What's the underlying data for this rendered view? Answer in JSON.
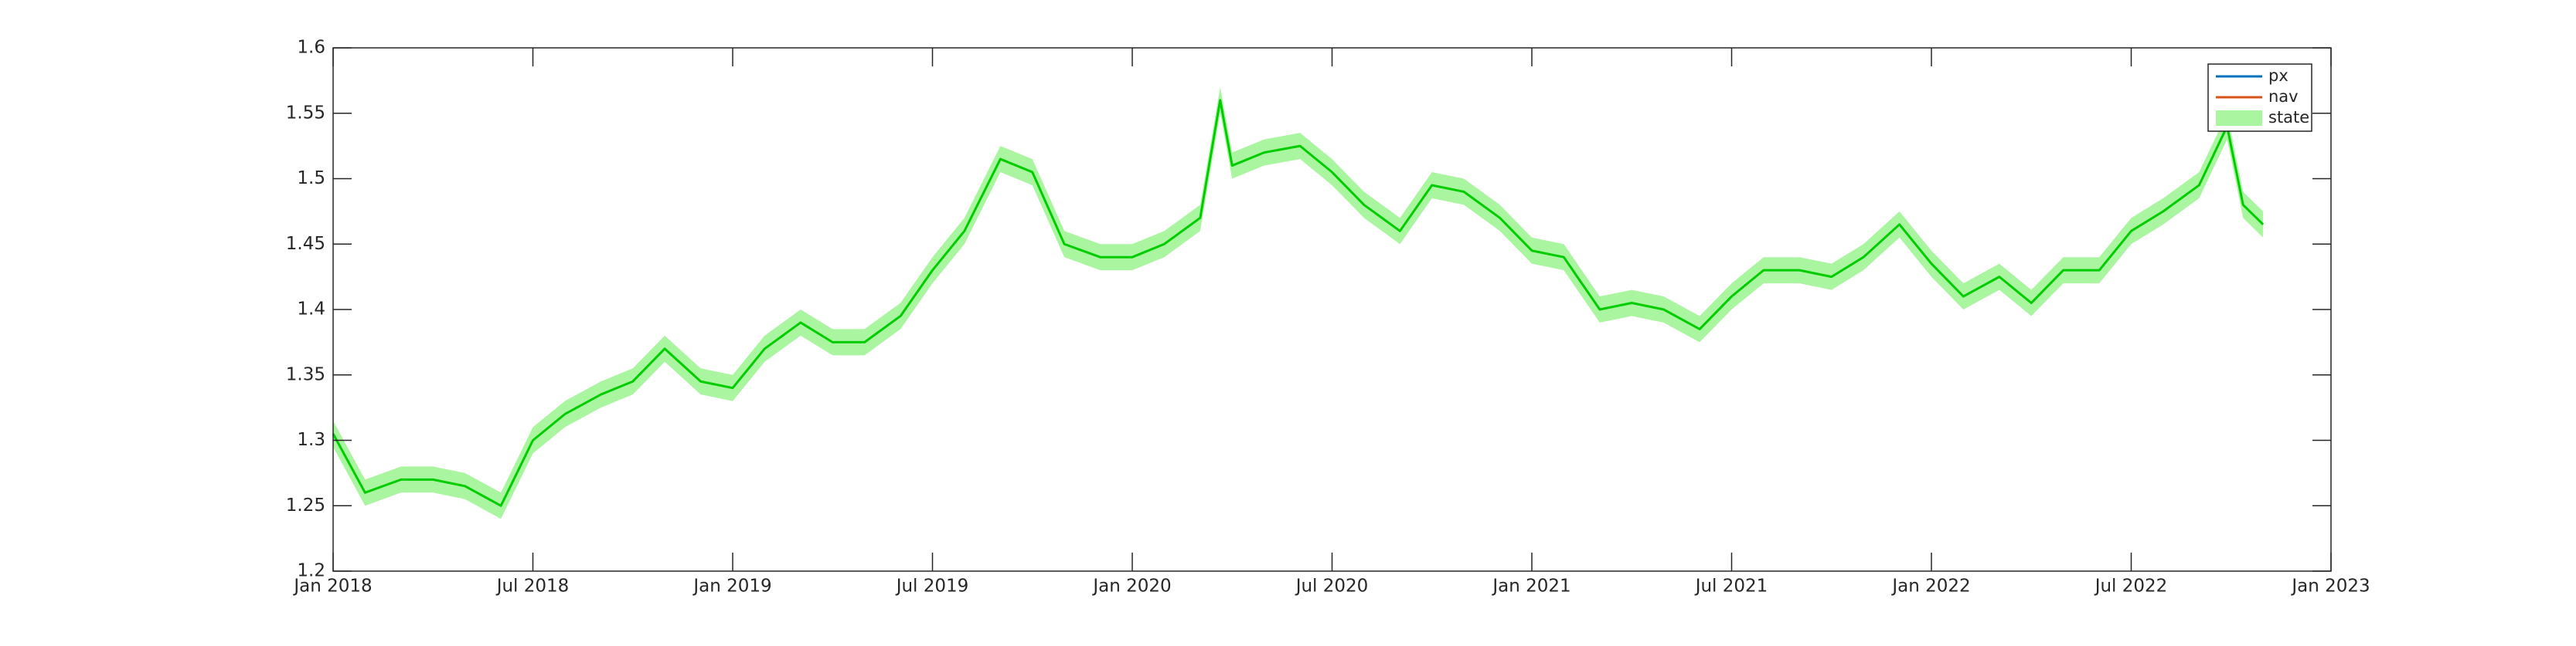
{
  "chart_data": {
    "type": "line",
    "legend": [
      {
        "name": "px",
        "color": "#0072bd",
        "kind": "line"
      },
      {
        "name": "nav",
        "color": "#d95319",
        "kind": "line"
      },
      {
        "name": "state",
        "color": "#aaf5a0",
        "kind": "patch"
      }
    ],
    "legend_position": "upper right",
    "x": [
      2018.0,
      2018.08,
      2018.17,
      2018.25,
      2018.33,
      2018.42,
      2018.5,
      2018.58,
      2018.67,
      2018.75,
      2018.83,
      2018.92,
      2019.0,
      2019.08,
      2019.17,
      2019.25,
      2019.33,
      2019.42,
      2019.5,
      2019.58,
      2019.67,
      2019.75,
      2019.83,
      2019.92,
      2020.0,
      2020.08,
      2020.17,
      2020.22,
      2020.25,
      2020.33,
      2020.42,
      2020.5,
      2020.58,
      2020.67,
      2020.75,
      2020.83,
      2020.92,
      2021.0,
      2021.08,
      2021.17,
      2021.25,
      2021.33,
      2021.42,
      2021.5,
      2021.58,
      2021.67,
      2021.75,
      2021.83,
      2021.92,
      2022.0,
      2022.08,
      2022.17,
      2022.25,
      2022.33,
      2022.42,
      2022.5,
      2022.58,
      2022.67,
      2022.74,
      2022.78,
      2022.83
    ],
    "series": [
      {
        "name": "state",
        "color": "#00cc00",
        "band_color": "#aaf5a0",
        "spread": 0.01,
        "values": [
          1.305,
          1.26,
          1.27,
          1.27,
          1.265,
          1.25,
          1.3,
          1.32,
          1.335,
          1.345,
          1.37,
          1.345,
          1.34,
          1.37,
          1.39,
          1.375,
          1.375,
          1.395,
          1.43,
          1.46,
          1.515,
          1.505,
          1.45,
          1.44,
          1.44,
          1.45,
          1.47,
          1.56,
          1.51,
          1.52,
          1.525,
          1.505,
          1.48,
          1.46,
          1.495,
          1.49,
          1.47,
          1.445,
          1.44,
          1.4,
          1.405,
          1.4,
          1.385,
          1.41,
          1.43,
          1.43,
          1.425,
          1.44,
          1.465,
          1.435,
          1.41,
          1.425,
          1.405,
          1.43,
          1.43,
          1.46,
          1.475,
          1.495,
          1.54,
          1.48,
          1.465
        ]
      }
    ],
    "xlim": [
      2018,
      2023
    ],
    "xticks": [
      {
        "value": 2018,
        "label": "Jan 2018"
      },
      {
        "value": 2018.5,
        "label": "Jul 2018"
      },
      {
        "value": 2019,
        "label": "Jan 2019"
      },
      {
        "value": 2019.5,
        "label": "Jul 2019"
      },
      {
        "value": 2020,
        "label": "Jan 2020"
      },
      {
        "value": 2020.5,
        "label": "Jul 2020"
      },
      {
        "value": 2021,
        "label": "Jan 2021"
      },
      {
        "value": 2021.5,
        "label": "Jul 2021"
      },
      {
        "value": 2022,
        "label": "Jan 2022"
      },
      {
        "value": 2022.5,
        "label": "Jul 2022"
      },
      {
        "value": 2023,
        "label": "Jan 2023"
      }
    ],
    "ylim": [
      1.2,
      1.6
    ],
    "yticks": [
      1.2,
      1.25,
      1.3,
      1.35,
      1.4,
      1.45,
      1.5,
      1.55,
      1.6
    ],
    "grid": false
  }
}
